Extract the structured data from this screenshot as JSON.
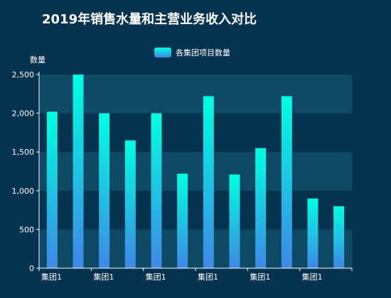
{
  "chart_data": {
    "type": "bar",
    "title": "2019年销售水量和主营业务收入对比",
    "ylabel": "数量",
    "ylim": [
      0,
      2500
    ],
    "yticks": [
      0,
      500,
      1000,
      1500,
      2000,
      2500
    ],
    "ytick_labels": [
      "0",
      "500",
      "1,000",
      "1,500",
      "2,000",
      "2,500"
    ],
    "categories": [
      "集团1",
      "集团1",
      "集团1",
      "集团1",
      "集团1",
      "集团1",
      "集团1",
      "集团1",
      "集团1",
      "集团1",
      "集团1",
      "集团1"
    ],
    "series": [
      {
        "name": "各集团项目数量",
        "values": [
          2020,
          2500,
          2000,
          1650,
          2000,
          1220,
          2220,
          1210,
          1550,
          2220,
          900,
          800
        ]
      }
    ],
    "legend_position": "top-center",
    "grid": true,
    "colors": {
      "background": "#05334f",
      "band": "#0e4a63",
      "bar_top": "#00ffe1",
      "bar_bottom": "#3f87e6",
      "axis": "#ffffff",
      "text": "#ffffff"
    }
  }
}
